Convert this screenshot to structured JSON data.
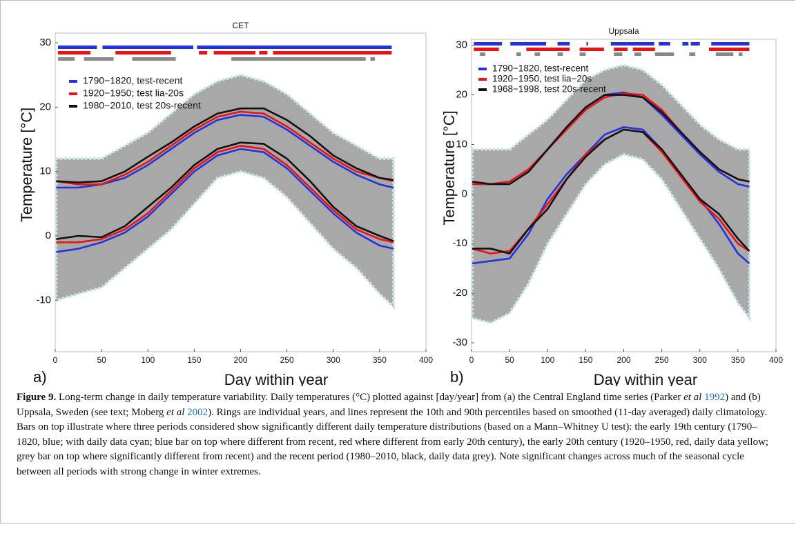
{
  "chart_data": [
    {
      "type": "line",
      "title": "CET",
      "panel_label": "a)",
      "x_label": "Day within year",
      "y_label": "Temperature [°C]",
      "xlim": [
        0,
        400
      ],
      "xticks": [
        0,
        50,
        100,
        150,
        200,
        250,
        300,
        350,
        400
      ],
      "ylim": [
        -18,
        31.5
      ],
      "yticks": [
        -10,
        0,
        10,
        20,
        30
      ],
      "x": [
        1,
        25,
        50,
        75,
        100,
        125,
        150,
        175,
        200,
        225,
        250,
        275,
        300,
        325,
        350,
        365
      ],
      "scatter_range": {
        "color": "#a8a8a8",
        "upper": [
          12,
          12,
          12,
          14,
          16,
          19,
          22,
          24,
          25,
          24,
          22,
          19,
          16,
          14,
          12,
          12
        ],
        "lower": [
          -10,
          -9,
          -8,
          -5,
          -2,
          1,
          5,
          9,
          10,
          9,
          6,
          2,
          -2,
          -5,
          -9,
          -11
        ]
      },
      "series": [
        {
          "name": "1790−1820, test-recent",
          "color": "#2233dd",
          "values": [
            7.5,
            7.5,
            8,
            9,
            11,
            13.5,
            16,
            18,
            18.8,
            18.5,
            16.5,
            14,
            11.5,
            9.5,
            8,
            7.5
          ],
          "lower_values": [
            -2.5,
            -2,
            -1,
            0.5,
            3,
            6.5,
            10,
            12.5,
            13.5,
            13,
            10.5,
            7,
            3.5,
            0.5,
            -1.5,
            -2
          ]
        },
        {
          "name": "1920−1950; test lia-20s",
          "color": "#ee1111",
          "values": [
            8.5,
            8,
            8,
            9.5,
            11.5,
            14,
            16.5,
            18.5,
            19.3,
            19,
            17,
            14.5,
            12,
            10,
            9,
            8.5
          ],
          "lower_values": [
            -1,
            -1,
            -0.5,
            1,
            3.5,
            7,
            10.5,
            13,
            14,
            13.5,
            11,
            7.5,
            4,
            1,
            -0.5,
            -1
          ]
        },
        {
          "name": "1980−2010, test 20s-recent",
          "color": "#111111",
          "values": [
            8.5,
            8.3,
            8.5,
            10,
            12.3,
            14.5,
            17,
            19,
            19.8,
            19.8,
            18,
            15.5,
            12.5,
            10.5,
            9,
            8.7
          ],
          "lower_values": [
            -0.5,
            0,
            -0.2,
            1.5,
            4.5,
            7.5,
            11,
            13.5,
            14.5,
            14.3,
            12,
            8.5,
            4.5,
            1.5,
            0,
            -0.8
          ]
        }
      ],
      "significance_bars": [
        {
          "color": "#2233dd",
          "segments": [
            [
              3,
              45
            ],
            [
              51,
              149
            ],
            [
              153,
              363
            ]
          ]
        },
        {
          "color": "#ee1111",
          "segments": [
            [
              3,
              38
            ],
            [
              65,
              125
            ],
            [
              155,
              164
            ],
            [
              171,
              216
            ],
            [
              220,
              229
            ],
            [
              235,
              363
            ]
          ]
        },
        {
          "color": "#888888",
          "segments": [
            [
              3,
              21
            ],
            [
              31,
              63
            ],
            [
              83,
              130
            ],
            [
              190,
              335
            ],
            [
              340,
              345
            ]
          ]
        }
      ]
    },
    {
      "type": "line",
      "title": "Uppsala",
      "panel_label": "b)",
      "x_label": "Day within year",
      "y_label": "Temperature [°C]",
      "xlim": [
        0,
        400
      ],
      "xticks": [
        0,
        50,
        100,
        150,
        200,
        250,
        300,
        350,
        400
      ],
      "ylim": [
        -31.8,
        31.2
      ],
      "yticks": [
        -30,
        -20,
        -10,
        0,
        10,
        20,
        30
      ],
      "x": [
        1,
        25,
        50,
        75,
        100,
        125,
        150,
        175,
        200,
        225,
        250,
        275,
        300,
        325,
        350,
        365
      ],
      "scatter_range": {
        "color": "#a8a8a8",
        "upper": [
          9,
          9,
          9,
          12,
          15,
          19,
          23,
          25,
          26,
          25,
          22,
          18,
          14,
          11,
          9,
          9
        ],
        "lower": [
          -25,
          -26,
          -24,
          -18,
          -10,
          -4,
          2,
          6,
          8,
          7,
          3,
          -3,
          -9,
          -15,
          -22,
          -25
        ]
      },
      "series": [
        {
          "name": "1790−1820, test-recent",
          "color": "#2233dd",
          "values": [
            2,
            2,
            2.5,
            5,
            9,
            13.5,
            17.5,
            20,
            20.5,
            19.5,
            16,
            12,
            8,
            4.5,
            2,
            1.5
          ],
          "lower_values": [
            -14,
            -13.5,
            -13,
            -8,
            -1,
            4,
            8,
            12,
            13.5,
            13,
            9,
            4,
            -1,
            -6,
            -12,
            -14
          ]
        },
        {
          "name": "1920−1950, test lia−20s",
          "color": "#ee1111",
          "values": [
            2,
            2,
            2.5,
            5,
            9,
            13,
            17,
            19.5,
            20.3,
            20,
            17,
            12.5,
            8.5,
            5,
            3,
            2.5
          ],
          "lower_values": [
            -11,
            -12,
            -11.5,
            -7,
            -2,
            3,
            8,
            11,
            13,
            12.5,
            8.5,
            3.5,
            -1.5,
            -5,
            -10,
            -11.5
          ]
        },
        {
          "name": "1968−1998, test 20s-recent",
          "color": "#111111",
          "values": [
            2.5,
            2,
            2,
            4.5,
            9,
            13.5,
            17.5,
            20,
            20,
            19.5,
            16.5,
            12.5,
            8.5,
            5,
            3,
            2.5
          ],
          "lower_values": [
            -11,
            -11,
            -12,
            -7,
            -3,
            3,
            7.5,
            11,
            13,
            12.5,
            9,
            4,
            -1,
            -4,
            -9,
            -11.5
          ]
        }
      ],
      "significance_bars": [
        {
          "color": "#2233dd",
          "segments": [
            [
              3,
              40
            ],
            [
              51,
              98
            ],
            [
              113,
              129
            ],
            [
              151,
              153
            ],
            [
              183,
              240
            ],
            [
              246,
              261
            ],
            [
              277,
              285
            ],
            [
              288,
              300
            ],
            [
              315,
              365
            ]
          ]
        },
        {
          "color": "#ee1111",
          "segments": [
            [
              3,
              36
            ],
            [
              72,
              129
            ],
            [
              142,
              174
            ],
            [
              187,
              205
            ],
            [
              212,
              241
            ],
            [
              312,
              365
            ]
          ]
        },
        {
          "color": "#888888",
          "segments": [
            [
              11,
              18
            ],
            [
              59,
              65
            ],
            [
              83,
              90
            ],
            [
              113,
              120
            ],
            [
              142,
              150
            ],
            [
              187,
              198
            ],
            [
              214,
              223
            ],
            [
              241,
              266
            ],
            [
              286,
              294
            ],
            [
              321,
              344
            ],
            [
              351,
              356
            ]
          ]
        }
      ]
    }
  ],
  "caption": {
    "segments": [
      "Figure 9.",
      " Long-term change in daily temperature variability. Daily temperatures (°C) plotted against [day/year] from (a) the Central England time series (Parker ",
      "et al ",
      "1992",
      ") and (b) Uppsala, Sweden (see text; Moberg ",
      "et al ",
      "2002",
      "). Rings are individual years, and lines represent the 10th and 90th percentiles based on smoothed (11-day averaged) daily climatology. Bars on top illustrate where three periods considered show significantly different daily temperature distributions (based on a Mann–Whitney U test): the early 19th century (1790–1820, blue; with daily data cyan; blue bar on top where different from recent, red where different from early 20th century), the early 20th century (1920–1950, red, daily data yellow; grey bar on top where significantly different from recent) and the recent period (1980–2010, black, daily data grey). Note significant changes across much of the seasonal cycle between all periods with strong change in winter extremes."
    ]
  }
}
